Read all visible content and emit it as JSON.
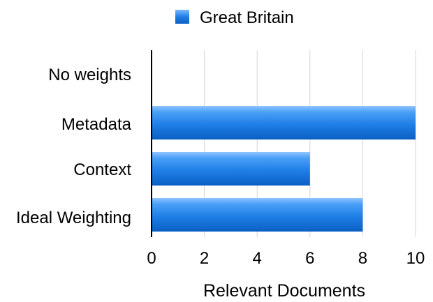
{
  "chart_data": {
    "type": "bar",
    "orientation": "horizontal",
    "categories": [
      "No weights",
      "Metadata",
      "Context",
      "Ideal Weighting"
    ],
    "series": [
      {
        "name": "Great Britain",
        "values": [
          0,
          10,
          6,
          8
        ],
        "color": "#1f7fe6"
      }
    ],
    "xlabel": "Relevant Documents",
    "ylabel": "",
    "xlim": [
      0,
      10
    ],
    "xticks": [
      "0",
      "2",
      "4",
      "6",
      "8",
      "10"
    ],
    "grid": true,
    "legend_position": "top-center"
  }
}
